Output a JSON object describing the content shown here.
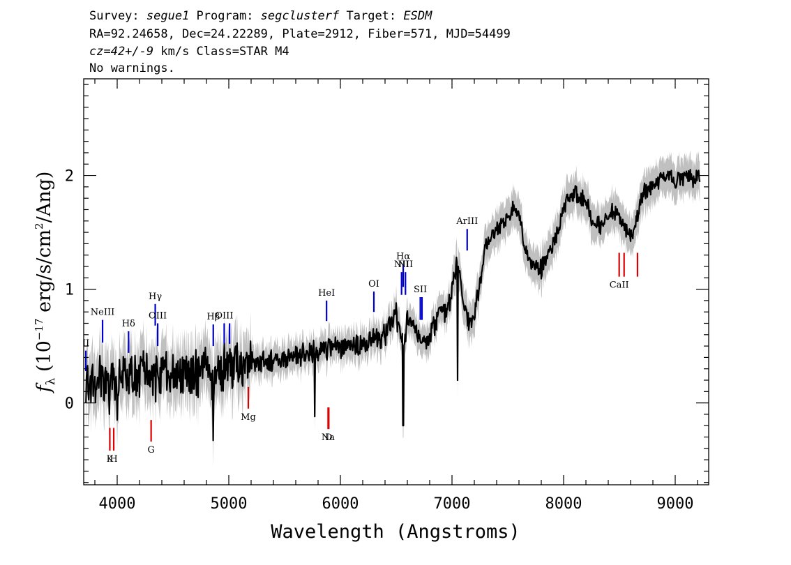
{
  "header": {
    "line1": [
      {
        "text": "Survey: ",
        "italic": false
      },
      {
        "text": "segue1",
        "italic": true
      },
      {
        "text": " Program: ",
        "italic": false
      },
      {
        "text": "segclusterf",
        "italic": true
      },
      {
        "text": " Target: ",
        "italic": false
      },
      {
        "text": "ESDM",
        "italic": true
      }
    ],
    "line2": "RA=92.24658, Dec=24.22289, Plate=2912, Fiber=571, MJD=54499",
    "line3": [
      {
        "text": "cz=42+/-9",
        "italic": true
      },
      {
        "text": " km/s Class=STAR M4",
        "italic": false
      }
    ],
    "line4": "No warnings."
  },
  "chart_data": {
    "type": "line",
    "title": "",
    "xlabel": "Wavelength (Angstroms)",
    "ylabel": "f_λ (10^-17 erg/s/cm^2/Ang)",
    "ylabel_parts": {
      "symbol": "f",
      "subscript": "λ",
      "open": " (10",
      "exp1": "−17",
      "mid": " erg/s/cm",
      "exp2": "2",
      "close": "/Ang)"
    },
    "xlim": [
      3700,
      9300
    ],
    "ylim": [
      -0.72,
      2.85
    ],
    "x_ticks": [
      4000,
      5000,
      6000,
      7000,
      8000,
      9000
    ],
    "y_ticks": [
      0,
      1,
      2
    ],
    "grid": false,
    "colors": {
      "flux": "#000000",
      "error_band": "#c0c0c0",
      "emission": "#0000cc",
      "absorption": "#dd0000"
    },
    "series": [
      {
        "x": [
          3800,
          3900,
          4000,
          4100,
          4200,
          4300,
          4400,
          4500,
          4600,
          4700,
          4800,
          4861,
          4900,
          5000,
          5100,
          5200,
          5300,
          5400,
          5500,
          5600,
          5700,
          5800,
          5900,
          6000,
          6100,
          6200,
          6300,
          6400,
          6500,
          6563,
          6600,
          6700,
          6750,
          6800,
          6850,
          6900,
          6950,
          7000,
          7050,
          7100,
          7150,
          7200,
          7250,
          7300,
          7350,
          7400,
          7450,
          7500,
          7550,
          7600,
          7650,
          7700,
          7750,
          7800,
          7850,
          7900,
          7950,
          8000,
          8050,
          8100,
          8150,
          8200,
          8250,
          8300,
          8350,
          8400,
          8450,
          8500,
          8550,
          8600,
          8650,
          8700,
          8750,
          8800,
          8850,
          8900,
          8950,
          9000,
          9050,
          9100,
          9150,
          9200
        ],
        "y": [
          0.2,
          0.22,
          0.2,
          0.24,
          0.22,
          0.23,
          0.25,
          0.26,
          0.27,
          0.26,
          0.29,
          0.15,
          0.3,
          0.32,
          0.34,
          0.35,
          0.36,
          0.38,
          0.4,
          0.42,
          0.44,
          0.45,
          0.47,
          0.5,
          0.5,
          0.49,
          0.55,
          0.6,
          0.78,
          0.5,
          0.72,
          0.62,
          0.55,
          0.6,
          0.7,
          0.85,
          0.8,
          1.0,
          1.28,
          0.85,
          0.7,
          0.78,
          1.05,
          1.38,
          1.48,
          1.52,
          1.58,
          1.6,
          1.72,
          1.65,
          1.4,
          1.22,
          1.2,
          1.18,
          1.28,
          1.4,
          1.5,
          1.72,
          1.8,
          1.85,
          1.78,
          1.8,
          1.6,
          1.58,
          1.55,
          1.65,
          1.7,
          1.62,
          1.55,
          1.45,
          1.58,
          1.82,
          1.88,
          1.9,
          1.95,
          1.98,
          2.0,
          1.92,
          1.98,
          2.0,
          1.95,
          2.0
        ]
      }
    ],
    "line_markers": [
      {
        "label": "NeIII",
        "wave": 3869,
        "kind": "emission",
        "y_top": 0.73,
        "y_bot": 0.53
      },
      {
        "label": "Hδ",
        "wave": 4102,
        "kind": "emission",
        "y_top": 0.63,
        "y_bot": 0.44
      },
      {
        "label": "Hγ",
        "wave": 4341,
        "kind": "emission",
        "y_top": 0.87,
        "y_bot": 0.68
      },
      {
        "label": "OIII",
        "wave": 4363,
        "kind": "emission",
        "y_top": 0.7,
        "y_bot": 0.5
      },
      {
        "label": "Hβ",
        "wave": 4861,
        "kind": "emission",
        "y_top": 0.69,
        "y_bot": 0.5
      },
      {
        "label": "OIII",
        "wave": 4959,
        "kind": "emission",
        "y_top": 0.7,
        "y_bot": 0.52
      },
      {
        "label": "",
        "wave": 5007,
        "kind": "emission",
        "y_top": 0.7,
        "y_bot": 0.52
      },
      {
        "label": "HeI",
        "wave": 5876,
        "kind": "emission",
        "y_top": 0.9,
        "y_bot": 0.72
      },
      {
        "label": "OI",
        "wave": 6300,
        "kind": "emission",
        "y_top": 0.98,
        "y_bot": 0.8
      },
      {
        "label": "NII",
        "wave": 6548,
        "kind": "emission",
        "y_top": 1.15,
        "y_bot": 0.95
      },
      {
        "label": "Hα",
        "wave": 6563,
        "kind": "emission",
        "y_top": 1.22,
        "y_bot": 1.02
      },
      {
        "label": "NII",
        "wave": 6583,
        "kind": "emission",
        "y_top": 1.15,
        "y_bot": 0.95
      },
      {
        "label": "SII",
        "wave": 6716,
        "kind": "emission",
        "y_top": 0.93,
        "y_bot": 0.73
      },
      {
        "label": "",
        "wave": 6731,
        "kind": "emission",
        "y_top": 0.93,
        "y_bot": 0.73
      },
      {
        "label": "ArIII",
        "wave": 7136,
        "kind": "emission",
        "y_top": 1.53,
        "y_bot": 1.34
      },
      {
        "label": "K",
        "wave": 3934,
        "kind": "absorption",
        "y_top": -0.22,
        "y_bot": -0.42
      },
      {
        "label": "H",
        "wave": 3969,
        "kind": "absorption",
        "y_top": -0.22,
        "y_bot": -0.42
      },
      {
        "label": "G",
        "wave": 4304,
        "kind": "absorption",
        "y_top": -0.15,
        "y_bot": -0.34
      },
      {
        "label": "Mg",
        "wave": 5175,
        "kind": "absorption",
        "y_top": 0.14,
        "y_bot": -0.05
      },
      {
        "label": "Na",
        "wave": 5890,
        "kind": "absorption",
        "y_top": -0.04,
        "y_bot": -0.23
      },
      {
        "label": "D",
        "wave": 5896,
        "kind": "absorption",
        "y_top": -0.04,
        "y_bot": -0.23
      },
      {
        "label": "CaII",
        "wave": 8498,
        "kind": "absorption",
        "y_top": 1.32,
        "y_bot": 1.11
      },
      {
        "label": "",
        "wave": 8542,
        "kind": "absorption",
        "y_top": 1.32,
        "y_bot": 1.11
      },
      {
        "label": "",
        "wave": 8662,
        "kind": "absorption",
        "y_top": 1.32,
        "y_bot": 1.11
      }
    ],
    "edge_label": "II"
  }
}
